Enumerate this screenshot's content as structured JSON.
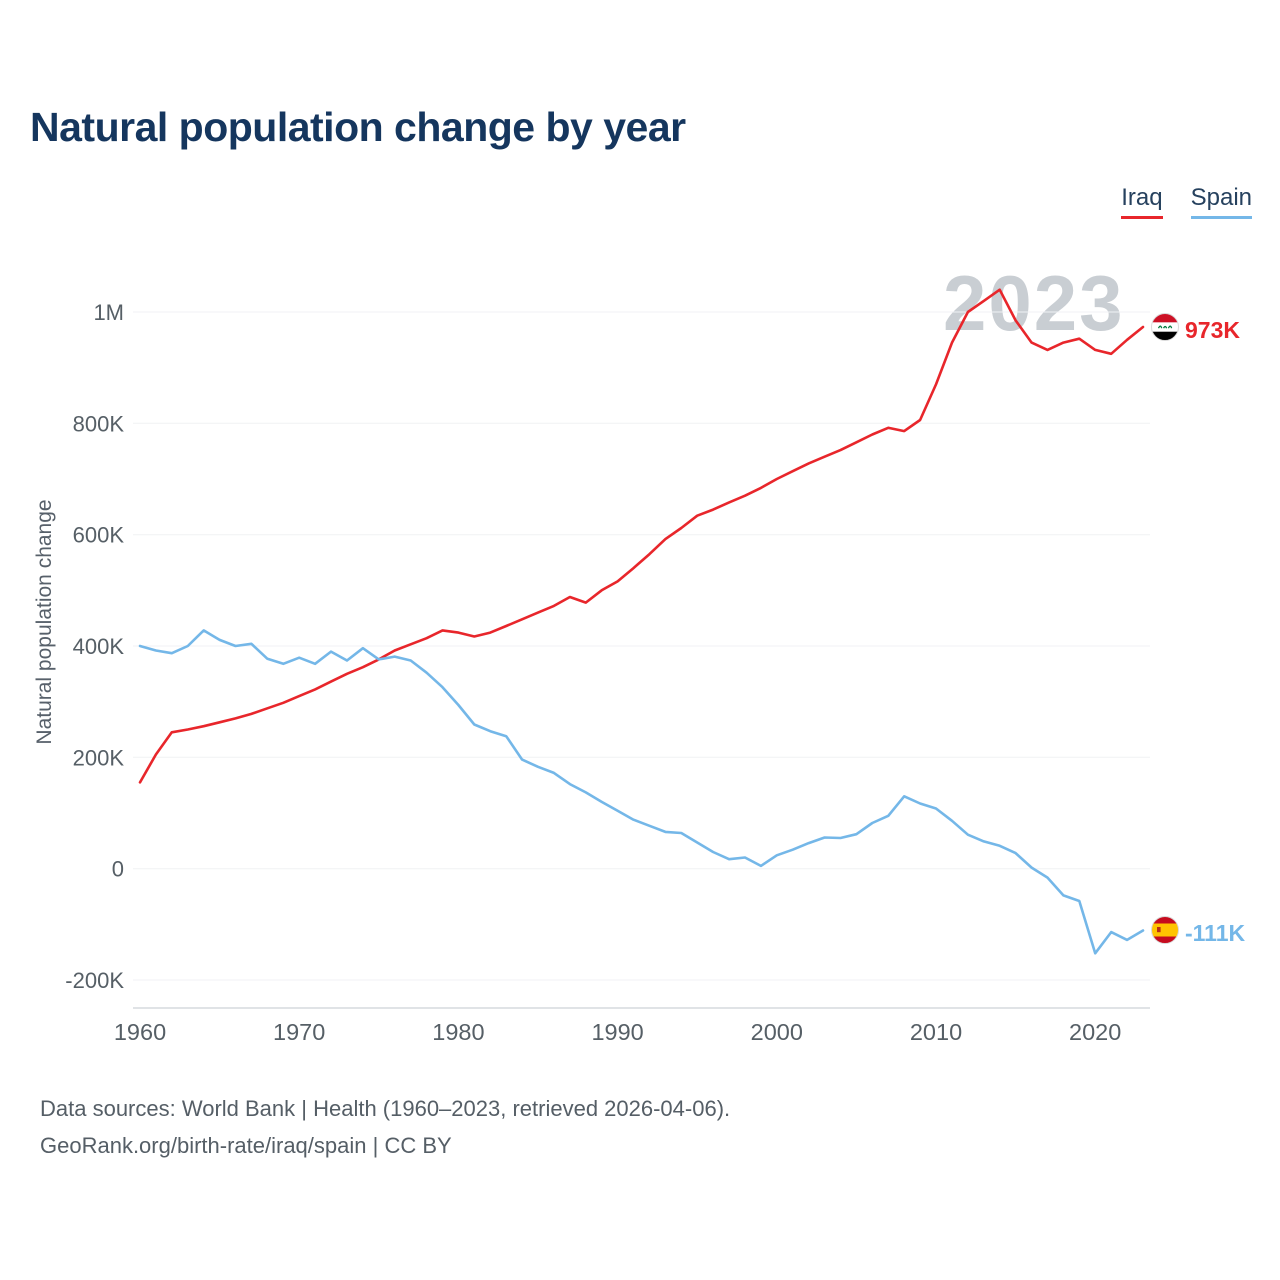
{
  "title": "Natural population change by year",
  "watermark": "2023",
  "legend": [
    {
      "label": "Iraq",
      "color": "#e8262b"
    },
    {
      "label": "Spain",
      "color": "#74b7e8"
    }
  ],
  "end_labels": {
    "iraq": "973K",
    "spain": "-111K"
  },
  "footer": {
    "line1": "Data sources: World Bank | Health (1960–2023, retrieved 2026-04-06).",
    "line2": "GeoRank.org/birth-rate/iraq/spain | CC BY"
  },
  "chart_data": {
    "type": "line",
    "title": "Natural population change by year",
    "xlabel": "",
    "ylabel": "Natural population change",
    "units": "thousands of people per year",
    "x_range": [
      1960,
      2023
    ],
    "x_ticks": [
      1960,
      1970,
      1980,
      1990,
      2000,
      2010,
      2020
    ],
    "y_ticks": [
      {
        "value_thousands": 1000,
        "label": "1M"
      },
      {
        "value_thousands": 800,
        "label": "800K"
      },
      {
        "value_thousands": 600,
        "label": "600K"
      },
      {
        "value_thousands": 400,
        "label": "400K"
      },
      {
        "value_thousands": 200,
        "label": "200K"
      },
      {
        "value_thousands": 0,
        "label": "0"
      },
      {
        "value_thousands": -200,
        "label": "-200K"
      }
    ],
    "grid": true,
    "legend_position": "top-right",
    "x": [
      1960,
      1961,
      1962,
      1963,
      1964,
      1965,
      1966,
      1967,
      1968,
      1969,
      1970,
      1971,
      1972,
      1973,
      1974,
      1975,
      1976,
      1977,
      1978,
      1979,
      1980,
      1981,
      1982,
      1983,
      1984,
      1985,
      1986,
      1987,
      1988,
      1989,
      1990,
      1991,
      1992,
      1993,
      1994,
      1995,
      1996,
      1997,
      1998,
      1999,
      2000,
      2001,
      2002,
      2003,
      2004,
      2005,
      2006,
      2007,
      2008,
      2009,
      2010,
      2011,
      2012,
      2013,
      2014,
      2015,
      2016,
      2017,
      2018,
      2019,
      2020,
      2021,
      2022,
      2023
    ],
    "series": [
      {
        "name": "Iraq",
        "color": "#e8262b",
        "end_value_label": "973K",
        "values_thousands": [
          155,
          205,
          245,
          250,
          256,
          263,
          270,
          278,
          288,
          298,
          310,
          322,
          336,
          350,
          362,
          376,
          392,
          403,
          414,
          428,
          424,
          417,
          424,
          436,
          448,
          460,
          472,
          488,
          478,
          500,
          516,
          540,
          565,
          592,
          612,
          634,
          645,
          658,
          670,
          684,
          700,
          714,
          728,
          740,
          752,
          766,
          780,
          792,
          786,
          806,
          870,
          945,
          1000,
          1020,
          1040,
          985,
          945,
          932,
          945,
          952,
          932,
          925,
          950,
          973
        ]
      },
      {
        "name": "Spain",
        "color": "#74b7e8",
        "end_value_label": "-111K",
        "values_thousands": [
          400,
          392,
          387,
          400,
          428,
          411,
          400,
          404,
          377,
          368,
          379,
          368,
          390,
          374,
          396,
          376,
          381,
          374,
          352,
          326,
          294,
          259,
          247,
          238,
          196,
          183,
          172,
          152,
          137,
          120,
          104,
          88,
          77,
          66,
          64,
          47,
          30,
          17,
          20,
          5,
          24,
          34,
          46,
          56,
          55,
          62,
          82,
          95,
          130,
          117,
          108,
          86,
          61,
          49,
          41,
          28,
          2,
          -16,
          -48,
          -58,
          -152,
          -114,
          -128,
          -111
        ]
      }
    ]
  }
}
